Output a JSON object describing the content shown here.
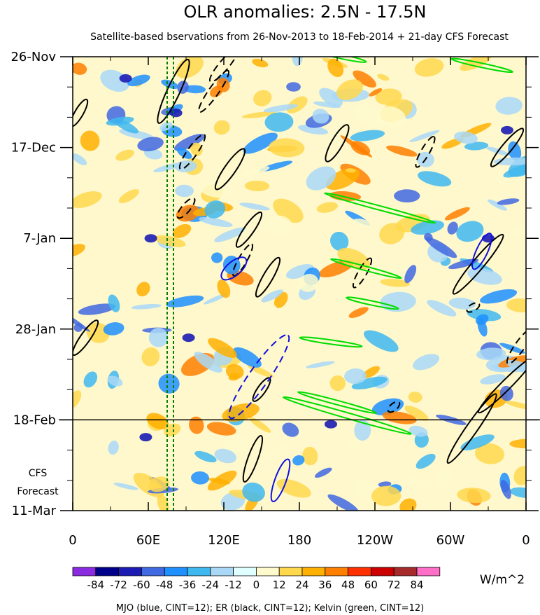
{
  "chart_data": {
    "type": "heatmap",
    "title": "OLR anomalies: 2.5N - 17.5N",
    "subtitle": "Satellite-based bservations from 26-Nov-2013 to 18-Feb-2014 + 21-day CFS Forecast",
    "x_ticks": [
      "0",
      "60E",
      "120E",
      "180",
      "120W",
      "60W",
      "0"
    ],
    "x_tick_lons": [
      0,
      60,
      120,
      180,
      240,
      300,
      360
    ],
    "y_ticks": [
      "26-Nov",
      "17-Dec",
      "7-Jan",
      "28-Jan",
      "18-Feb",
      "11-Mar"
    ],
    "y_tick_days": [
      0,
      21,
      42,
      63,
      84,
      105
    ],
    "ylim_days": [
      0,
      105
    ],
    "forecast_start_day": 84,
    "forecast_label_1": "CFS",
    "forecast_label_2": "Forecast",
    "colorbar": {
      "levels": [
        "-84",
        "-72",
        "-60",
        "-48",
        "-36",
        "-24",
        "-12",
        "0",
        "12",
        "24",
        "36",
        "48",
        "60",
        "72",
        "84"
      ],
      "colors": [
        "#8a2be2",
        "#00008b",
        "#1c1cb4",
        "#4169e1",
        "#1e90ff",
        "#3fb8f0",
        "#a9d8f7",
        "#e0ffff",
        "#fffacd",
        "#ffd84d",
        "#ffb000",
        "#ff7f00",
        "#ff3000",
        "#cc0000",
        "#a52a2a",
        "#ff6ec7"
      ],
      "units": "W/m^2"
    },
    "legend_text": "MJO (blue, CINT=12); ER (black, CINT=12); Kelvin (green, CINT=12)",
    "contours": {
      "mjo_color": "#1010e0",
      "er_color": "#000000",
      "kelvin_color": "#00dd00",
      "ref_line_color": "#008000"
    },
    "reference_lon": [
      75,
      80
    ]
  }
}
